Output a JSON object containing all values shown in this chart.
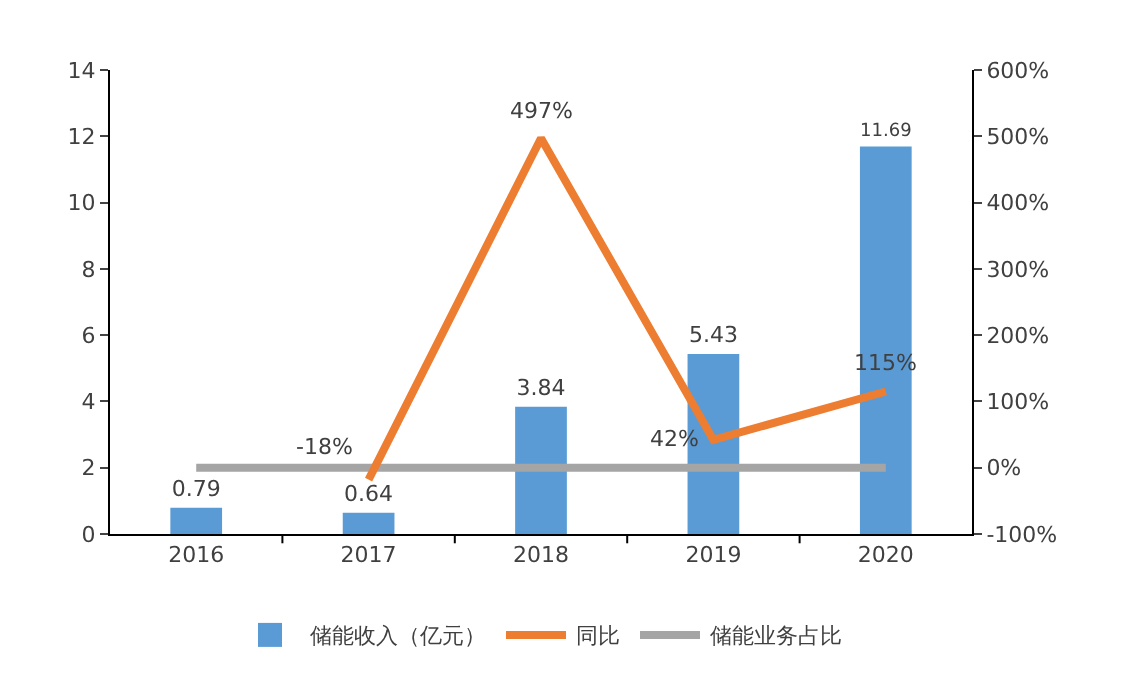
{
  "chart_data": {
    "type": "bar",
    "categories": [
      "2016",
      "2017",
      "2018",
      "2019",
      "2020"
    ],
    "series": [
      {
        "name": "储能收入（亿元）",
        "color": "#5b9bd5",
        "values": [
          0.79,
          0.64,
          3.84,
          5.43,
          11.69
        ],
        "value_labels": [
          "0.79",
          "0.64",
          "3.84",
          "5.43",
          "11.69"
        ]
      },
      {
        "name": "同比",
        "type": "line",
        "axis": "y2",
        "color": "#ed7d31",
        "values": [
          null,
          -18,
          497,
          42,
          115
        ],
        "value_labels": [
          null,
          "-18%",
          "497%",
          "42%",
          "115%"
        ]
      },
      {
        "name": "储能业务占比",
        "type": "line",
        "axis": "y2",
        "color": "#a5a5a5",
        "values": [
          0,
          0,
          0,
          0,
          0
        ]
      }
    ],
    "ylim": [
      0,
      14
    ],
    "yticks": [
      0,
      2,
      4,
      6,
      8,
      10,
      12,
      14
    ],
    "y2lim": [
      -100,
      600
    ],
    "y2ticks": [
      {
        "value": -100,
        "label": "-100%"
      },
      {
        "value": 0,
        "label": "0%"
      },
      {
        "value": 100,
        "label": "100%"
      },
      {
        "value": 200,
        "label": "200%"
      },
      {
        "value": 300,
        "label": "300%"
      },
      {
        "value": 400,
        "label": "400%"
      },
      {
        "value": 500,
        "label": "500%"
      },
      {
        "value": 600,
        "label": "600%"
      }
    ],
    "grid": false,
    "legend": "bottom",
    "line_style": "solid",
    "marker": "none"
  }
}
